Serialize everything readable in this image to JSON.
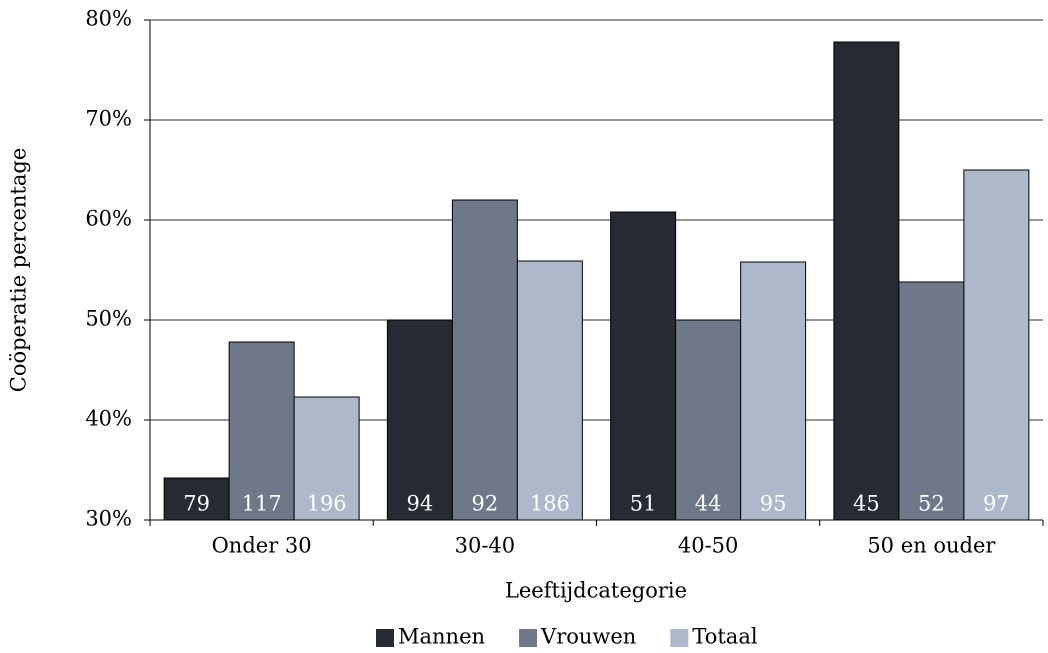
{
  "chart_data": {
    "type": "bar",
    "x_label": "Leeftijdcategorie",
    "y_label": "Coöperatie percentage",
    "categories": [
      "Onder 30",
      "30-40",
      "40-50",
      "50 en ouder"
    ],
    "series": [
      {
        "name": "Mannen",
        "color": "#262a33",
        "values": [
          34.2,
          50,
          60.8,
          77.8
        ],
        "value_labels_n": [
          79,
          94,
          51,
          45
        ]
      },
      {
        "name": "Vrouwen",
        "color": "#6f7888",
        "values": [
          47.8,
          62,
          50,
          53.8
        ],
        "value_labels_n": [
          117,
          92,
          44,
          52
        ]
      },
      {
        "name": "Totaal",
        "color": "#adb8cb",
        "values": [
          42.3,
          55.9,
          55.8,
          65
        ],
        "value_labels_n": [
          196,
          186,
          95,
          97
        ]
      }
    ],
    "ylim": [
      30,
      80
    ],
    "yticks": [
      {
        "value": 30,
        "label": "30%"
      },
      {
        "value": 40,
        "label": "40%"
      },
      {
        "value": 50,
        "label": "50%"
      },
      {
        "value": 60,
        "label": "60%"
      },
      {
        "value": 70,
        "label": "70%"
      },
      {
        "value": 80,
        "label": "80%"
      }
    ],
    "grid": true,
    "legend": "bottom"
  }
}
